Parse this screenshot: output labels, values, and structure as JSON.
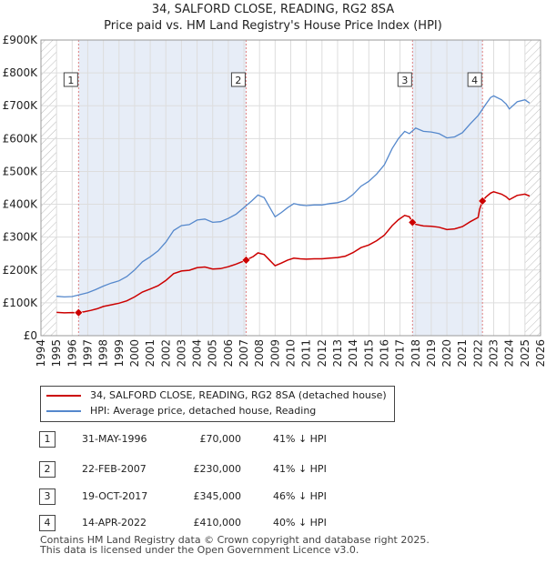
{
  "chart_data": {
    "type": "line",
    "title": "34, SALFORD CLOSE, READING, RG2 8SA",
    "subtitle": "Price paid vs. HM Land Registry's House Price Index (HPI)",
    "xlabel": "",
    "ylabel": "",
    "xlim": [
      1994,
      2026
    ],
    "ylim": [
      0,
      900000
    ],
    "x_ticks": [
      1994,
      1995,
      1996,
      1997,
      1998,
      1999,
      2000,
      2001,
      2002,
      2003,
      2004,
      2005,
      2006,
      2007,
      2008,
      2009,
      2010,
      2011,
      2012,
      2013,
      2014,
      2015,
      2016,
      2017,
      2018,
      2019,
      2020,
      2021,
      2022,
      2023,
      2024,
      2025,
      2026
    ],
    "y_ticks": [
      {
        "value": 0,
        "label": "£0"
      },
      {
        "value": 100000,
        "label": "£100K"
      },
      {
        "value": 200000,
        "label": "£200K"
      },
      {
        "value": 300000,
        "label": "£300K"
      },
      {
        "value": 400000,
        "label": "£400K"
      },
      {
        "value": 500000,
        "label": "£500K"
      },
      {
        "value": 600000,
        "label": "£600K"
      },
      {
        "value": 700000,
        "label": "£700K"
      },
      {
        "value": 800000,
        "label": "£800K"
      },
      {
        "value": 900000,
        "label": "£900K"
      }
    ],
    "grid": true,
    "colors": {
      "property": "#cc0000",
      "hpi": "#5588cc",
      "vline": "#e08080",
      "shade": "#dde6f3",
      "hatch": "#bbbbbb",
      "grid": "#dddddd"
    },
    "hpi_points": [
      [
        1995.0,
        120000
      ],
      [
        1995.5,
        118000
      ],
      [
        1996.0,
        119000
      ],
      [
        1996.5,
        125000
      ],
      [
        1997.0,
        131000
      ],
      [
        1997.5,
        140000
      ],
      [
        1998.0,
        151000
      ],
      [
        1998.5,
        160000
      ],
      [
        1999.0,
        167000
      ],
      [
        1999.5,
        180000
      ],
      [
        2000.0,
        200000
      ],
      [
        2000.5,
        225000
      ],
      [
        2001.0,
        240000
      ],
      [
        2001.5,
        258000
      ],
      [
        2002.0,
        285000
      ],
      [
        2002.5,
        320000
      ],
      [
        2003.0,
        335000
      ],
      [
        2003.5,
        338000
      ],
      [
        2004.0,
        352000
      ],
      [
        2004.5,
        355000
      ],
      [
        2005.0,
        345000
      ],
      [
        2005.5,
        347000
      ],
      [
        2006.0,
        357000
      ],
      [
        2006.5,
        370000
      ],
      [
        2007.0,
        390000
      ],
      [
        2007.5,
        410000
      ],
      [
        2007.9,
        428000
      ],
      [
        2008.3,
        420000
      ],
      [
        2008.6,
        395000
      ],
      [
        2009.0,
        362000
      ],
      [
        2009.4,
        375000
      ],
      [
        2009.8,
        390000
      ],
      [
        2010.2,
        402000
      ],
      [
        2010.6,
        398000
      ],
      [
        2011.0,
        396000
      ],
      [
        2011.5,
        398000
      ],
      [
        2012.0,
        398000
      ],
      [
        2012.5,
        402000
      ],
      [
        2013.0,
        405000
      ],
      [
        2013.5,
        412000
      ],
      [
        2014.0,
        430000
      ],
      [
        2014.5,
        455000
      ],
      [
        2015.0,
        470000
      ],
      [
        2015.5,
        492000
      ],
      [
        2016.0,
        520000
      ],
      [
        2016.5,
        570000
      ],
      [
        2016.9,
        600000
      ],
      [
        2017.3,
        622000
      ],
      [
        2017.6,
        615000
      ],
      [
        2018.0,
        632000
      ],
      [
        2018.5,
        622000
      ],
      [
        2019.0,
        620000
      ],
      [
        2019.5,
        615000
      ],
      [
        2020.0,
        602000
      ],
      [
        2020.5,
        605000
      ],
      [
        2021.0,
        618000
      ],
      [
        2021.5,
        645000
      ],
      [
        2022.0,
        670000
      ],
      [
        2022.5,
        705000
      ],
      [
        2022.8,
        725000
      ],
      [
        2023.0,
        730000
      ],
      [
        2023.5,
        718000
      ],
      [
        2023.8,
        705000
      ],
      [
        2024.0,
        690000
      ],
      [
        2024.5,
        712000
      ],
      [
        2025.0,
        718000
      ],
      [
        2025.3,
        708000
      ]
    ],
    "property_points": [
      [
        1995.0,
        71000
      ],
      [
        1995.5,
        69500
      ],
      [
        1996.0,
        70200
      ],
      [
        1996.41,
        70000
      ],
      [
        1996.8,
        73000
      ],
      [
        1997.2,
        77000
      ],
      [
        1997.6,
        82000
      ],
      [
        1998.0,
        89000
      ],
      [
        1998.5,
        94000
      ],
      [
        1999.0,
        99000
      ],
      [
        1999.5,
        106000
      ],
      [
        2000.0,
        118000
      ],
      [
        2000.5,
        133000
      ],
      [
        2001.0,
        142000
      ],
      [
        2001.5,
        152000
      ],
      [
        2002.0,
        168000
      ],
      [
        2002.5,
        189000
      ],
      [
        2003.0,
        197000
      ],
      [
        2003.5,
        199000
      ],
      [
        2004.0,
        207000
      ],
      [
        2004.5,
        209000
      ],
      [
        2005.0,
        203000
      ],
      [
        2005.5,
        204000
      ],
      [
        2006.0,
        210000
      ],
      [
        2006.5,
        218000
      ],
      [
        2007.14,
        230000
      ],
      [
        2007.6,
        241000
      ],
      [
        2007.9,
        252000
      ],
      [
        2008.3,
        247000
      ],
      [
        2008.6,
        232000
      ],
      [
        2009.0,
        213000
      ],
      [
        2009.4,
        221000
      ],
      [
        2009.8,
        230000
      ],
      [
        2010.2,
        236000
      ],
      [
        2010.6,
        234000
      ],
      [
        2011.0,
        233000
      ],
      [
        2011.5,
        234000
      ],
      [
        2012.0,
        234000
      ],
      [
        2012.5,
        236000
      ],
      [
        2013.0,
        238000
      ],
      [
        2013.5,
        242000
      ],
      [
        2014.0,
        253000
      ],
      [
        2014.5,
        268000
      ],
      [
        2015.0,
        276000
      ],
      [
        2015.5,
        289000
      ],
      [
        2016.0,
        306000
      ],
      [
        2016.5,
        335000
      ],
      [
        2016.9,
        353000
      ],
      [
        2017.3,
        366000
      ],
      [
        2017.6,
        362000
      ],
      [
        2017.8,
        345000
      ],
      [
        2018.0,
        339000
      ],
      [
        2018.5,
        334000
      ],
      [
        2019.0,
        333000
      ],
      [
        2019.5,
        330000
      ],
      [
        2020.0,
        323000
      ],
      [
        2020.5,
        325000
      ],
      [
        2021.0,
        332000
      ],
      [
        2021.5,
        347000
      ],
      [
        2022.0,
        360000
      ],
      [
        2022.1,
        385000
      ],
      [
        2022.28,
        410000
      ],
      [
        2022.5,
        422000
      ],
      [
        2022.8,
        434000
      ],
      [
        2023.0,
        438000
      ],
      [
        2023.5,
        431000
      ],
      [
        2023.8,
        423000
      ],
      [
        2024.0,
        414000
      ],
      [
        2024.5,
        427000
      ],
      [
        2025.0,
        431000
      ],
      [
        2025.3,
        425000
      ]
    ],
    "sales": [
      {
        "num": "1",
        "x": 1996.41,
        "value": 70000
      },
      {
        "num": "2",
        "x": 2007.14,
        "value": 230000
      },
      {
        "num": "3",
        "x": 2017.8,
        "value": 345000
      },
      {
        "num": "4",
        "x": 2022.28,
        "value": 410000
      }
    ]
  },
  "header": {
    "title": "34, SALFORD CLOSE, READING, RG2 8SA",
    "subtitle": "Price paid vs. HM Land Registry's House Price Index (HPI)"
  },
  "legend": {
    "property_label": "34, SALFORD CLOSE, READING, RG2 8SA (detached house)",
    "hpi_label": "HPI: Average price, detached house, Reading"
  },
  "transactions": [
    {
      "num": "1",
      "date": "31-MAY-1996",
      "price": "£70,000",
      "hpi": "41% ↓ HPI"
    },
    {
      "num": "2",
      "date": "22-FEB-2007",
      "price": "£230,000",
      "hpi": "41% ↓ HPI"
    },
    {
      "num": "3",
      "date": "19-OCT-2017",
      "price": "£345,000",
      "hpi": "46% ↓ HPI"
    },
    {
      "num": "4",
      "date": "14-APR-2022",
      "price": "£410,000",
      "hpi": "40% ↓ HPI"
    }
  ],
  "footer": {
    "line1": "Contains HM Land Registry data © Crown copyright and database right 2025.",
    "line2": "This data is licensed under the Open Government Licence v3.0."
  }
}
